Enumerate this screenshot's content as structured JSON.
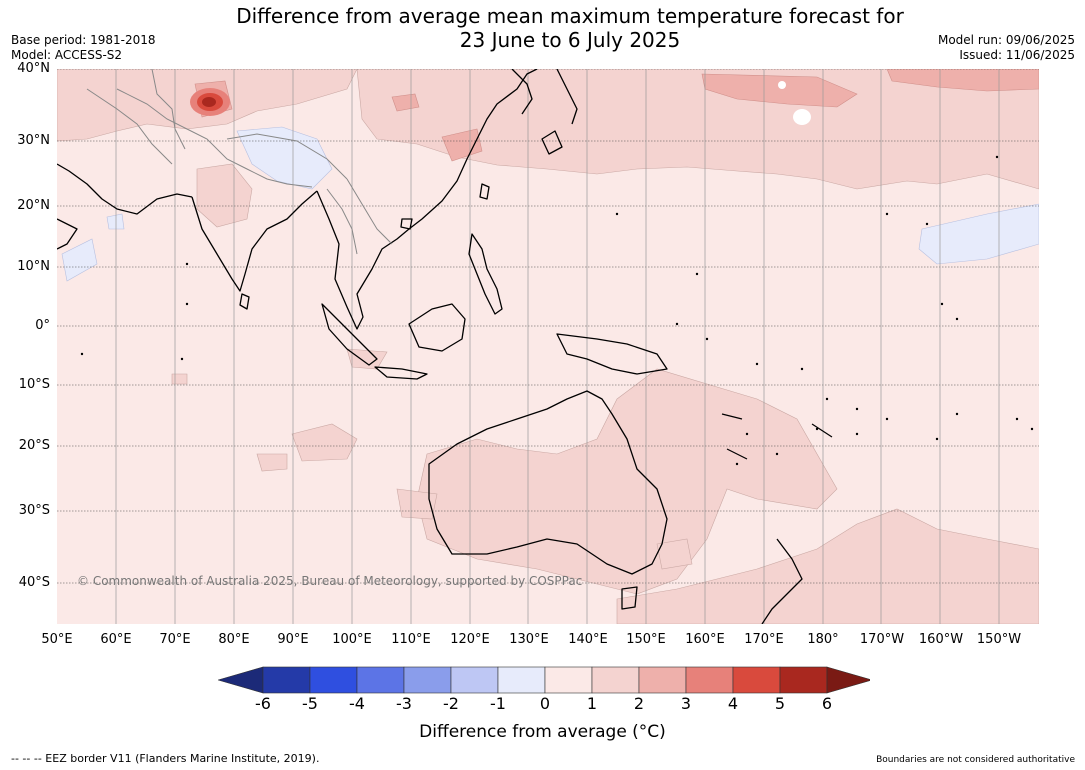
{
  "title_line1": "Difference from average mean maximum temperature forecast for",
  "title_line2": "23 June to 6 July 2025",
  "base_period": "Base period: 1981-2018",
  "model": "Model: ACCESS-S2",
  "model_run": "Model run: 09/06/2025",
  "issued": "Issued: 11/06/2025",
  "copyright": "© Commonwealth of Australia 2025, Bureau of Meteorology, supported by COSPPac",
  "lat_labels": [
    "40°N",
    "30°N",
    "20°N",
    "10°N",
    "0°",
    "10°S",
    "20°S",
    "30°S",
    "40°S"
  ],
  "lon_labels": [
    "50°E",
    "60°E",
    "70°E",
    "80°E",
    "90°E",
    "100°E",
    "110°E",
    "120°E",
    "130°E",
    "140°E",
    "150°E",
    "160°E",
    "170°E",
    "180°",
    "170°W",
    "160°W",
    "150°W"
  ],
  "colorbar": {
    "ticks": [
      "-6",
      "-5",
      "-4",
      "-3",
      "-2",
      "-1",
      "0",
      "1",
      "2",
      "3",
      "4",
      "5",
      "6"
    ],
    "colors": [
      "#1c2a78",
      "#243aa8",
      "#2f4fe0",
      "#5c74e6",
      "#8a9deb",
      "#bec7f4",
      "#e7ebfb",
      "#fbe9e7",
      "#f4d3d0",
      "#eeb0ab",
      "#e7817a",
      "#d94a3d",
      "#a9281f",
      "#7a1a14"
    ],
    "title": "Difference from average (°C)"
  },
  "colors": {
    "land_outline": "#000000",
    "border": "#888888",
    "background_anomaly": "#fbe9e7"
  },
  "footer_left": "--  --  -- EEZ border V11 (Flanders Marine Institute, 2019).",
  "footer_right": "Boundaries are not considered authoritative"
}
